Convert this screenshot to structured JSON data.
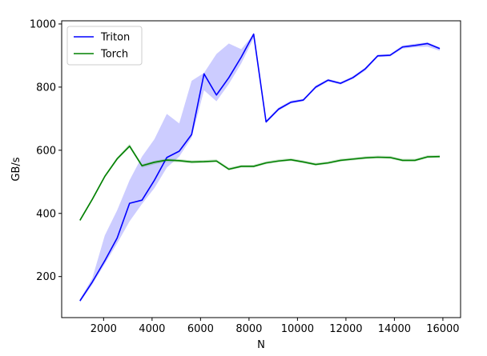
{
  "chart_data": {
    "type": "line",
    "title": "",
    "xlabel": "N",
    "ylabel": "GB/s",
    "xlim": [
      270,
      16730
    ],
    "ylim": [
      70,
      1010
    ],
    "xticks": [
      2000,
      4000,
      6000,
      8000,
      10000,
      12000,
      14000,
      16000
    ],
    "yticks": [
      200,
      400,
      600,
      800,
      1000
    ],
    "xtick_labels": [
      "2000",
      "4000",
      "6000",
      "8000",
      "10000",
      "12000",
      "14000",
      "16000"
    ],
    "ytick_labels": [
      "200",
      "400",
      "600",
      "800",
      "1000"
    ],
    "grid": false,
    "legend_position": "top-left",
    "x": [
      1024,
      1536,
      2048,
      2560,
      3072,
      3584,
      4096,
      4608,
      5120,
      5632,
      6144,
      6656,
      7168,
      7680,
      8192,
      8704,
      9216,
      9728,
      10240,
      10752,
      11264,
      11776,
      12288,
      12800,
      13312,
      13824,
      14336,
      14848,
      15360,
      15872
    ],
    "series": [
      {
        "name": "Triton",
        "color": "#0000ff",
        "band_color": "#0000ff",
        "values": [
          123,
          183,
          250,
          322,
          432,
          442,
          505,
          577,
          597,
          650,
          842,
          775,
          830,
          895,
          968,
          690,
          730,
          752,
          759,
          800,
          822,
          812,
          830,
          858,
          899,
          901,
          927,
          932,
          938,
          922
        ],
        "band_low": [
          118,
          175,
          240,
          305,
          375,
          430,
          480,
          545,
          580,
          640,
          790,
          755,
          810,
          875,
          955,
          685,
          725,
          748,
          755,
          795,
          818,
          808,
          826,
          852,
          895,
          897,
          922,
          926,
          928,
          915
        ],
        "band_high": [
          128,
          195,
          330,
          410,
          505,
          580,
          635,
          715,
          685,
          820,
          845,
          905,
          938,
          920,
          968,
          695,
          735,
          757,
          763,
          805,
          826,
          816,
          835,
          862,
          903,
          905,
          932,
          937,
          942,
          926
        ]
      },
      {
        "name": "Torch",
        "color": "#008000",
        "band_color": "#008000",
        "values": [
          378,
          445,
          517,
          573,
          613,
          551,
          562,
          569,
          567,
          563,
          564,
          566,
          540,
          549,
          549,
          560,
          566,
          570,
          563,
          555,
          560,
          568,
          572,
          576,
          578,
          577,
          568,
          568,
          579,
          580
        ],
        "band_low": [
          374,
          440,
          512,
          568,
          608,
          545,
          556,
          563,
          562,
          558,
          560,
          562,
          536,
          545,
          545,
          556,
          562,
          566,
          559,
          551,
          556,
          564,
          568,
          572,
          574,
          573,
          564,
          564,
          575,
          576
        ],
        "band_high": [
          383,
          450,
          522,
          578,
          620,
          556,
          567,
          574,
          572,
          568,
          569,
          571,
          545,
          554,
          554,
          565,
          571,
          575,
          568,
          560,
          565,
          573,
          577,
          581,
          583,
          582,
          573,
          573,
          584,
          585
        ]
      }
    ]
  }
}
